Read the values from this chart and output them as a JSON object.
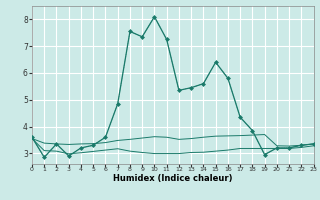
{
  "xlabel": "Humidex (Indice chaleur)",
  "bg_color": "#cceae7",
  "grid_color": "#ffffff",
  "line_color": "#1a7a6a",
  "x_ticks": [
    0,
    1,
    2,
    3,
    4,
    5,
    6,
    7,
    8,
    9,
    10,
    11,
    12,
    13,
    14,
    15,
    16,
    17,
    18,
    19,
    20,
    21,
    22,
    23
  ],
  "yticks": [
    3,
    4,
    5,
    6,
    7,
    8
  ],
  "ylim": [
    2.6,
    8.5
  ],
  "xlim": [
    0,
    23
  ],
  "series": [
    {
      "x": [
        0,
        1,
        2,
        3,
        4,
        5,
        6,
        7,
        8,
        9,
        10,
        11,
        12,
        13,
        14,
        15,
        16,
        17,
        18,
        19,
        20,
        21,
        22,
        23
      ],
      "y": [
        3.6,
        2.85,
        3.35,
        2.9,
        3.2,
        3.3,
        3.6,
        4.85,
        7.55,
        7.35,
        8.1,
        7.25,
        5.35,
        5.45,
        5.6,
        6.4,
        5.8,
        4.35,
        3.85,
        2.95,
        3.2,
        3.2,
        3.3,
        3.35
      ],
      "marker": "D",
      "markersize": 2.0,
      "linewidth": 0.9,
      "linestyle": "solid"
    },
    {
      "x": [
        0,
        1,
        2,
        3,
        4,
        5,
        6,
        7,
        8,
        9,
        10,
        11,
        12,
        13,
        14,
        15,
        16,
        17,
        18,
        19,
        20,
        21,
        22,
        23
      ],
      "y": [
        3.6,
        2.85,
        3.35,
        2.9,
        3.2,
        3.3,
        3.6,
        4.85,
        7.55,
        7.35,
        8.1,
        7.25,
        5.35,
        5.45,
        5.6,
        6.4,
        5.8,
        4.35,
        3.85,
        2.95,
        3.2,
        3.2,
        3.3,
        3.35
      ],
      "marker": null,
      "markersize": 0,
      "linewidth": 0.5,
      "linestyle": "dotted"
    },
    {
      "x": [
        0,
        1,
        2,
        3,
        4,
        5,
        6,
        7,
        8,
        9,
        10,
        11,
        12,
        13,
        14,
        15,
        16,
        17,
        18,
        19,
        20,
        21,
        22,
        23
      ],
      "y": [
        3.55,
        3.38,
        3.35,
        3.33,
        3.35,
        3.36,
        3.4,
        3.48,
        3.52,
        3.57,
        3.62,
        3.6,
        3.52,
        3.55,
        3.6,
        3.64,
        3.65,
        3.66,
        3.68,
        3.7,
        3.28,
        3.27,
        3.3,
        3.35
      ],
      "marker": null,
      "markersize": 0,
      "linewidth": 0.7,
      "linestyle": "solid"
    },
    {
      "x": [
        0,
        1,
        2,
        3,
        4,
        5,
        6,
        7,
        8,
        9,
        10,
        11,
        12,
        13,
        14,
        15,
        16,
        17,
        18,
        19,
        20,
        21,
        22,
        23
      ],
      "y": [
        3.55,
        3.1,
        3.08,
        2.98,
        3.02,
        3.07,
        3.12,
        3.17,
        3.08,
        3.03,
        2.99,
        2.99,
        2.99,
        3.03,
        3.04,
        3.08,
        3.12,
        3.18,
        3.18,
        3.18,
        3.18,
        3.18,
        3.22,
        3.28
      ],
      "marker": null,
      "markersize": 0,
      "linewidth": 0.7,
      "linestyle": "solid"
    }
  ]
}
